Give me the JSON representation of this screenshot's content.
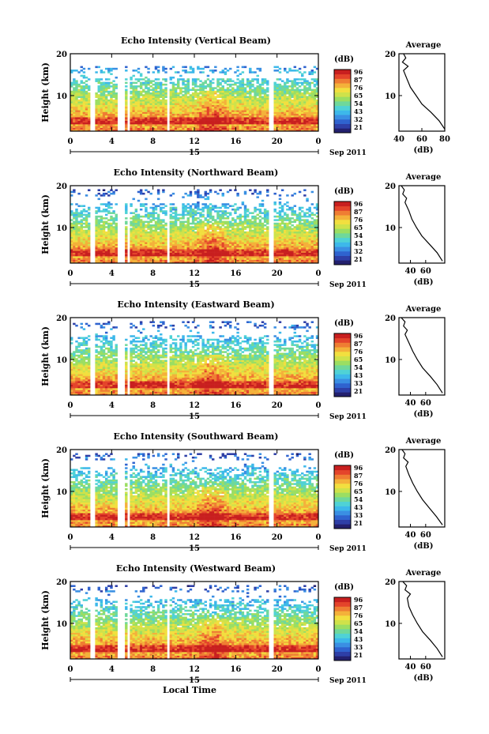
{
  "footer": {
    "xlabel": "Local Time"
  },
  "date_label": "15",
  "date_right": "Sep 2011",
  "cbar_unit": "(dB)",
  "avg_title": "Average",
  "avg_xlabel": "(dB)",
  "ylabel": "Height (km)",
  "colors": [
    "#23206e",
    "#2e3fa7",
    "#2f63cf",
    "#3a8fe3",
    "#3db8ea",
    "#4fd2d6",
    "#6fd89b",
    "#9bde62",
    "#cfe24a",
    "#f2df3f",
    "#f4b13a",
    "#ef7d33",
    "#e4442b",
    "#c81f1f"
  ],
  "chart_data": [
    {
      "type": "heatmap",
      "title": "Echo Intensity (Vertical Beam)",
      "ylabel": "Height (km)",
      "ylim": [
        1.5,
        20
      ],
      "yticks": [
        "20",
        "10"
      ],
      "xlim": [
        0,
        24
      ],
      "xticks": [
        "0",
        "4",
        "8",
        "12",
        "16",
        "20",
        "0"
      ],
      "colorbar_ticks": [
        "96",
        "87",
        "76",
        "65",
        "54",
        "43",
        "32",
        "21"
      ],
      "gaps": [
        [
          1.8,
          2.3
        ],
        [
          4.6,
          5.2
        ],
        [
          5.5,
          5.8
        ],
        [
          9.3,
          9.6
        ],
        [
          19.2,
          19.6
        ]
      ],
      "echo_top_km": 16.5,
      "avg": {
        "xlim": [
          40,
          80
        ],
        "xticks": [
          "40",
          "60",
          "80"
        ],
        "heights": [
          2,
          4,
          6,
          8,
          10,
          12,
          14,
          16,
          17,
          18,
          19,
          20
        ],
        "values": [
          80,
          75,
          68,
          60,
          55,
          50,
          47,
          44,
          48,
          43,
          46,
          44
        ]
      }
    },
    {
      "type": "heatmap",
      "title": "Echo Intensity (Northward Beam)",
      "ylabel": "Height (km)",
      "ylim": [
        1.5,
        20
      ],
      "yticks": [
        "20",
        "10"
      ],
      "xlim": [
        0,
        24
      ],
      "xticks": [
        "0",
        "4",
        "8",
        "12",
        "16",
        "20",
        "0"
      ],
      "colorbar_ticks": [
        "96",
        "87",
        "76",
        "65",
        "54",
        "43",
        "32",
        "21"
      ],
      "gaps": [
        [
          1.8,
          2.3
        ],
        [
          4.6,
          5.2
        ],
        [
          5.5,
          5.8
        ],
        [
          9.3,
          9.6
        ],
        [
          19.2,
          19.6
        ]
      ],
      "echo_top_km": 18.5,
      "avg": {
        "xlim": [
          25,
          85
        ],
        "xticks": [
          "40",
          "60"
        ],
        "heights": [
          2,
          4,
          6,
          8,
          10,
          12,
          14,
          16,
          17,
          18,
          19,
          20
        ],
        "values": [
          82,
          75,
          65,
          55,
          48,
          42,
          38,
          33,
          35,
          30,
          32,
          28
        ]
      }
    },
    {
      "type": "heatmap",
      "title": "Echo Intensity (Eastward Beam)",
      "ylabel": "Height (km)",
      "ylim": [
        1.5,
        20
      ],
      "yticks": [
        "20",
        "10"
      ],
      "xlim": [
        0,
        24
      ],
      "xticks": [
        "0",
        "4",
        "8",
        "12",
        "16",
        "20",
        "0"
      ],
      "colorbar_ticks": [
        "96",
        "87",
        "76",
        "65",
        "54",
        "43",
        "33",
        "21"
      ],
      "gaps": [
        [
          1.8,
          2.3
        ],
        [
          4.6,
          5.2
        ],
        [
          5.5,
          5.8
        ],
        [
          9.3,
          9.6
        ],
        [
          19.2,
          19.6
        ]
      ],
      "echo_top_km": 18.5,
      "avg": {
        "xlim": [
          25,
          85
        ],
        "xticks": [
          "40",
          "60"
        ],
        "heights": [
          2,
          4,
          6,
          8,
          10,
          12,
          14,
          16,
          17,
          18,
          19,
          20
        ],
        "values": [
          82,
          75,
          66,
          56,
          49,
          43,
          38,
          33,
          36,
          31,
          33,
          28
        ]
      }
    },
    {
      "type": "heatmap",
      "title": "Echo Intensity (Southward Beam)",
      "ylabel": "Height (km)",
      "ylim": [
        1.5,
        20
      ],
      "yticks": [
        "20",
        "10"
      ],
      "xlim": [
        0,
        24
      ],
      "xticks": [
        "0",
        "4",
        "8",
        "12",
        "16",
        "20",
        "0"
      ],
      "colorbar_ticks": [
        "96",
        "87",
        "76",
        "65",
        "54",
        "43",
        "33",
        "21"
      ],
      "gaps": [
        [
          1.8,
          2.3
        ],
        [
          4.6,
          5.2
        ],
        [
          5.5,
          5.8
        ],
        [
          9.3,
          9.6
        ],
        [
          19.2,
          19.6
        ]
      ],
      "echo_top_km": 18.5,
      "avg": {
        "xlim": [
          25,
          85
        ],
        "xticks": [
          "40",
          "60"
        ],
        "heights": [
          2,
          4,
          6,
          8,
          10,
          12,
          14,
          16,
          17,
          18,
          19,
          20
        ],
        "values": [
          82,
          74,
          65,
          56,
          49,
          43,
          38,
          34,
          37,
          31,
          33,
          29
        ]
      }
    },
    {
      "type": "heatmap",
      "title": "Echo Intensity (Westward Beam)",
      "ylabel": "Height (km)",
      "ylim": [
        1.5,
        20
      ],
      "yticks": [
        "20",
        "10"
      ],
      "xlim": [
        0,
        24
      ],
      "xticks": [
        "0",
        "4",
        "8",
        "12",
        "16",
        "20",
        "0"
      ],
      "colorbar_ticks": [
        "96",
        "87",
        "76",
        "65",
        "54",
        "43",
        "33",
        "21"
      ],
      "gaps": [
        [
          1.8,
          2.3
        ],
        [
          4.6,
          5.2
        ],
        [
          5.5,
          5.8
        ],
        [
          9.3,
          9.6
        ],
        [
          19.2,
          19.6
        ]
      ],
      "echo_top_km": 18.5,
      "avg": {
        "xlim": [
          25,
          85
        ],
        "xticks": [
          "40",
          "60"
        ],
        "heights": [
          2,
          4,
          6,
          8,
          10,
          12,
          14,
          16,
          17,
          18,
          19,
          20
        ],
        "values": [
          82,
          75,
          66,
          56,
          49,
          43,
          38,
          36,
          40,
          33,
          35,
          30
        ]
      }
    }
  ]
}
